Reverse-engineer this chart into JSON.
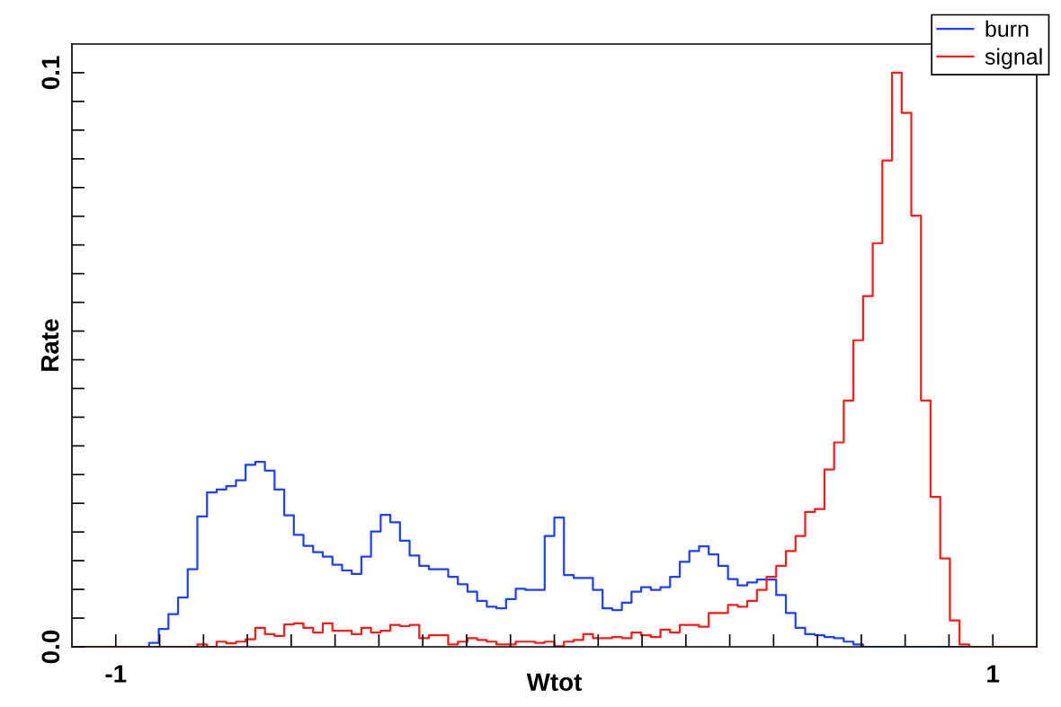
{
  "chart_data": {
    "type": "histogram",
    "xlabel": "Wtot",
    "ylabel": "Rate",
    "bins": [
      -1.1,
      -1.078,
      -1.056,
      -1.034,
      -1.012,
      -0.99,
      -0.968,
      -0.946,
      -0.924,
      -0.902,
      -0.88,
      -0.858,
      -0.836,
      -0.814,
      -0.792,
      -0.77,
      -0.748,
      -0.726,
      -0.704,
      -0.682,
      -0.66,
      -0.638,
      -0.616,
      -0.594,
      -0.572,
      -0.55,
      -0.528,
      -0.506,
      -0.484,
      -0.462,
      -0.44,
      -0.418,
      -0.396,
      -0.374,
      -0.352,
      -0.33,
      -0.308,
      -0.286,
      -0.264,
      -0.242,
      -0.22,
      -0.198,
      -0.176,
      -0.154,
      -0.132,
      -0.11,
      -0.088,
      -0.066,
      -0.044,
      -0.022,
      0,
      0.022,
      0.044,
      0.066,
      0.088,
      0.11,
      0.132,
      0.154,
      0.176,
      0.198,
      0.22,
      0.242,
      0.264,
      0.286,
      0.308,
      0.33,
      0.352,
      0.374,
      0.396,
      0.418,
      0.44,
      0.462,
      0.484,
      0.506,
      0.528,
      0.55,
      0.572,
      0.594,
      0.616,
      0.638,
      0.66,
      0.682,
      0.704,
      0.726,
      0.748,
      0.77,
      0.792,
      0.814,
      0.836,
      0.858,
      0.88,
      0.902,
      0.924,
      0.946,
      0.968,
      0.99,
      1.012,
      1.034,
      1.056,
      1.078,
      1.1
    ],
    "series": [
      {
        "name": "burn",
        "color": "#1f40ff",
        "values": [
          0,
          0,
          0,
          0,
          0,
          0,
          0,
          0,
          0.0007,
          0.0031,
          0.0057,
          0.0086,
          0.0135,
          0.0227,
          0.0269,
          0.0274,
          0.028,
          0.029,
          0.0317,
          0.0322,
          0.0307,
          0.0274,
          0.0229,
          0.0195,
          0.0176,
          0.0165,
          0.0157,
          0.0143,
          0.0133,
          0.0127,
          0.0157,
          0.0201,
          0.023,
          0.0217,
          0.0185,
          0.0159,
          0.0141,
          0.0135,
          0.0135,
          0.0122,
          0.0109,
          0.0096,
          0.008,
          0.007,
          0.0067,
          0.0083,
          0.0101,
          0.0099,
          0.0099,
          0.0193,
          0.0225,
          0.0125,
          0.012,
          0.012,
          0.0099,
          0.0067,
          0.0064,
          0.0077,
          0.0096,
          0.0104,
          0.0099,
          0.0104,
          0.0122,
          0.0148,
          0.0167,
          0.0175,
          0.0161,
          0.0141,
          0.0118,
          0.0107,
          0.0112,
          0.0117,
          0.0117,
          0.009,
          0.0059,
          0.0033,
          0.0022,
          0.002,
          0.0017,
          0.0015,
          0.0009,
          0.0004,
          0,
          0,
          0,
          0,
          0,
          0,
          0,
          0,
          0,
          0,
          0,
          0,
          0,
          0,
          0,
          0,
          0,
          0
        ]
      },
      {
        "name": "signal",
        "color": "#ff1a1a",
        "values": [
          0,
          0,
          0,
          0,
          0,
          0,
          0,
          0,
          0,
          0,
          0,
          0,
          0,
          0.0004,
          0,
          0.0009,
          0.0006,
          0.0009,
          0.0013,
          0.0033,
          0.0022,
          0.0019,
          0.0039,
          0.0041,
          0.0033,
          0.0025,
          0.0041,
          0.0028,
          0.0028,
          0.0022,
          0.0033,
          0.0025,
          0.0028,
          0.0038,
          0.0036,
          0.0038,
          0.0015,
          0.002,
          0.002,
          0.0004,
          0.0009,
          0.0015,
          0.0012,
          0.0009,
          0.0004,
          0.0004,
          0.0009,
          0.0009,
          0.0007,
          0.0009,
          0.0001,
          0.0009,
          0.0012,
          0.0022,
          0.0015,
          0.0015,
          0.0017,
          0.0015,
          0.0025,
          0.002,
          0.0017,
          0.003,
          0.0025,
          0.0038,
          0.0038,
          0.0035,
          0.0059,
          0.0059,
          0.0073,
          0.007,
          0.008,
          0.0099,
          0.0122,
          0.0141,
          0.0167,
          0.0193,
          0.0235,
          0.024,
          0.0309,
          0.0356,
          0.0429,
          0.0534,
          0.0611,
          0.0703,
          0.0847,
          0.1,
          0.093,
          0.0751,
          0.0429,
          0.0261,
          0.0154,
          0.0046,
          0.0004,
          0,
          0,
          0,
          0,
          0,
          0,
          0
        ]
      }
    ],
    "xlim": [
      -1.1,
      1.1
    ],
    "xticks": [
      {
        "value": -1,
        "label": "-1"
      },
      {
        "value": -0.9,
        "label": null
      },
      {
        "value": -0.8,
        "label": null
      },
      {
        "value": -0.7,
        "label": null
      },
      {
        "value": -0.6,
        "label": null
      },
      {
        "value": -0.5,
        "label": null
      },
      {
        "value": -0.4,
        "label": null
      },
      {
        "value": -0.3,
        "label": null
      },
      {
        "value": -0.2,
        "label": null
      },
      {
        "value": -0.1,
        "label": null
      },
      {
        "value": 0,
        "label": null
      },
      {
        "value": 0.1,
        "label": null
      },
      {
        "value": 0.2,
        "label": null
      },
      {
        "value": 0.3,
        "label": null
      },
      {
        "value": 0.4,
        "label": null
      },
      {
        "value": 0.5,
        "label": null
      },
      {
        "value": 0.6,
        "label": null
      },
      {
        "value": 0.7,
        "label": null
      },
      {
        "value": 0.8,
        "label": null
      },
      {
        "value": 0.9,
        "label": null
      },
      {
        "value": 1,
        "label": "1"
      }
    ],
    "ylim": [
      0,
      0.105
    ],
    "yticks": [
      {
        "value": 0,
        "label": "0.0"
      },
      {
        "value": 0.005,
        "label": null
      },
      {
        "value": 0.01,
        "label": null
      },
      {
        "value": 0.015,
        "label": null
      },
      {
        "value": 0.02,
        "label": null
      },
      {
        "value": 0.025,
        "label": null
      },
      {
        "value": 0.03,
        "label": null
      },
      {
        "value": 0.035,
        "label": null
      },
      {
        "value": 0.04,
        "label": null
      },
      {
        "value": 0.045,
        "label": null
      },
      {
        "value": 0.05,
        "label": null
      },
      {
        "value": 0.055,
        "label": null
      },
      {
        "value": 0.06,
        "label": null
      },
      {
        "value": 0.065,
        "label": null
      },
      {
        "value": 0.07,
        "label": null
      },
      {
        "value": 0.075,
        "label": null
      },
      {
        "value": 0.08,
        "label": null
      },
      {
        "value": 0.085,
        "label": null
      },
      {
        "value": 0.09,
        "label": null
      },
      {
        "value": 0.095,
        "label": null
      },
      {
        "value": 0.1,
        "label": "0.1"
      }
    ],
    "grid": false,
    "legend": "top right"
  }
}
